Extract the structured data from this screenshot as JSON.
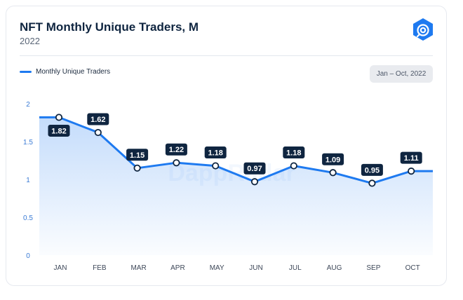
{
  "header": {
    "title": "NFT Monthly Unique Traders, M",
    "subtitle": "2022"
  },
  "logo_icon": "dappradar-logo-icon",
  "legend": {
    "label": "Monthly Unique Traders"
  },
  "range_badge": "Jan – Oct, 2022",
  "watermark": "DappRadar",
  "colors": {
    "line": "#1e7af0",
    "label_bg": "#0f2540",
    "accent": "#1e7af0"
  },
  "chart_data": {
    "type": "area",
    "title": "NFT Monthly Unique Traders, M",
    "subtitle": "2022",
    "xlabel": "",
    "ylabel": "",
    "categories": [
      "JAN",
      "FEB",
      "MAR",
      "APR",
      "MAY",
      "JUN",
      "JUL",
      "AUG",
      "SEP",
      "OCT"
    ],
    "series": [
      {
        "name": "Monthly Unique Traders",
        "values": [
          1.82,
          1.62,
          1.15,
          1.22,
          1.18,
          0.97,
          1.18,
          1.09,
          0.95,
          1.11
        ]
      }
    ],
    "ylim": [
      0,
      2
    ],
    "yticks": [
      "0",
      "0.5",
      "1",
      "1.5",
      "2"
    ],
    "grid": false,
    "legend_position": "top-left"
  }
}
